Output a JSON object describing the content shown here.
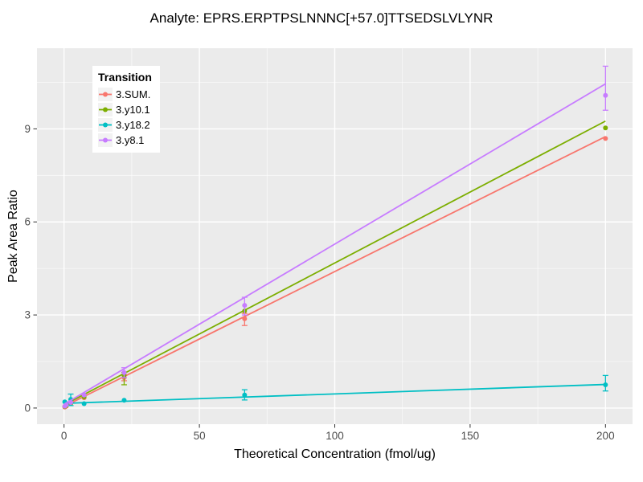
{
  "chart": {
    "title": "Analyte: EPRS.ERPTPSLNNNC[+57.0]TTSEDSLVLYNR",
    "xlabel": "Theoretical Concentration (fmol/ug)",
    "ylabel": "Peak Area Ratio",
    "legend_title": "Transition"
  },
  "chart_data": {
    "type": "scatter",
    "title": "Analyte: EPRS.ERPTPSLNNNC[+57.0]TTSEDSLVLYNR",
    "xlabel": "Theoretical Concentration (fmol/ug)",
    "ylabel": "Peak Area Ratio",
    "legend_title": "Transition",
    "legend_position": "top-left",
    "panel_bg": "#EBEBEB",
    "grid_color": "#FFFFFF",
    "tick_label_color": "#4D4D4D",
    "tick_mark_color": "#333333",
    "xlim": [
      -10,
      210
    ],
    "ylim": [
      -0.52,
      11.6
    ],
    "x_major_ticks": [
      0,
      50,
      100,
      150,
      200
    ],
    "x_minor_ticks": [
      25,
      75,
      125,
      175
    ],
    "y_major_ticks": [
      0,
      3,
      6,
      9
    ],
    "y_minor_ticks": [
      1.5,
      4.5,
      7.5,
      10.5
    ],
    "x": [
      0.27,
      0.82,
      2.47,
      7.41,
      22.2,
      66.7,
      200
    ],
    "series": [
      {
        "name": "3.SUM.",
        "color": "#F8766D",
        "values": [
          0.03,
          0.06,
          0.16,
          0.33,
          0.98,
          2.88,
          8.69
        ],
        "err_lo": [
          null,
          null,
          null,
          null,
          0.88,
          2.66,
          null
        ],
        "err_hi": [
          null,
          null,
          null,
          null,
          1.08,
          3.05,
          null
        ],
        "fit_line": {
          "x": [
            0,
            200
          ],
          "y": [
            0.05,
            8.75
          ]
        }
      },
      {
        "name": "3.y10.1",
        "color": "#7CAE00",
        "values": [
          0.05,
          0.08,
          0.15,
          0.36,
          1.05,
          3.13,
          9.03
        ],
        "err_lo": [
          null,
          null,
          null,
          null,
          0.75,
          null,
          null
        ],
        "err_hi": [
          null,
          null,
          null,
          null,
          1.15,
          null,
          null
        ],
        "fit_line": {
          "x": [
            0,
            200
          ],
          "y": [
            0.1,
            9.25
          ]
        }
      },
      {
        "name": "3.y18.2",
        "color": "#00BFC4",
        "values": [
          0.2,
          0.12,
          0.28,
          0.14,
          0.25,
          0.42,
          0.75
        ],
        "err_lo": [
          null,
          null,
          0.08,
          null,
          null,
          0.26,
          0.55
        ],
        "err_hi": [
          null,
          null,
          0.45,
          null,
          null,
          0.59,
          1.05
        ],
        "fit_line": {
          "x": [
            0,
            200
          ],
          "y": [
            0.15,
            0.76
          ]
        }
      },
      {
        "name": "3.y8.1",
        "color": "#C77CFF",
        "values": [
          0.06,
          0.1,
          0.18,
          0.42,
          1.14,
          3.31,
          10.08
        ],
        "err_lo": [
          null,
          null,
          null,
          null,
          0.98,
          3.0,
          9.6
        ],
        "err_hi": [
          null,
          null,
          null,
          null,
          1.3,
          3.57,
          11.02
        ],
        "fit_line": {
          "x": [
            0,
            200
          ],
          "y": [
            0.12,
            10.45
          ]
        }
      }
    ]
  }
}
